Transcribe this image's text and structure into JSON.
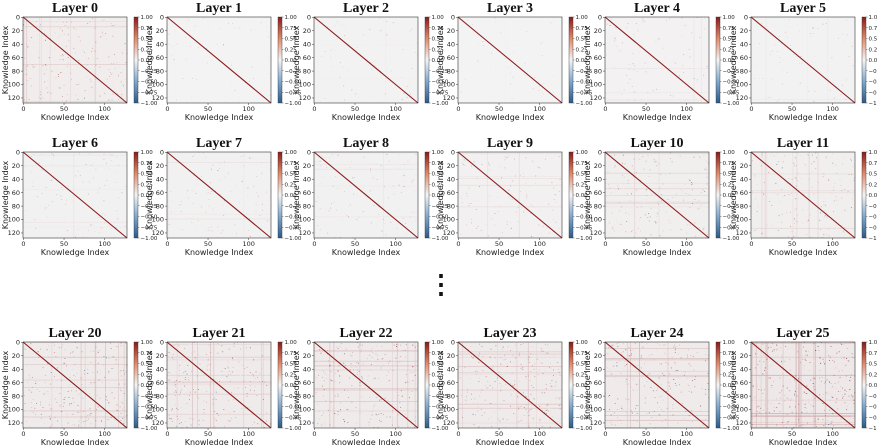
{
  "chart_data": {
    "type": "heatmap",
    "description_rows": 3,
    "xlabel": "Knowledge Index",
    "ylabel": "Knowledge Index",
    "matrix_size": 128,
    "x_ticks": [
      "0",
      "50",
      "100"
    ],
    "x_tick_values": [
      0,
      50,
      100
    ],
    "y_ticks": [
      "0",
      "20",
      "40",
      "60",
      "80",
      "100",
      "120"
    ],
    "y_tick_values": [
      0,
      20,
      40,
      60,
      80,
      100,
      120
    ],
    "colorbar_ticks": [
      "1.00",
      "0.75",
      "0.50",
      "0.25",
      "0.00",
      "−0.25",
      "−0.50",
      "−0.75",
      "−1.00"
    ],
    "colorbar_values": [
      1.0,
      0.75,
      0.5,
      0.25,
      0.0,
      -0.25,
      -0.5,
      -0.75,
      -1.0
    ],
    "vmin": -1.0,
    "vmax": 1.0,
    "colormap": {
      "low": "#2b5a8a",
      "mid": "#f4f4f4",
      "high": "#8b1a1a"
    },
    "ellipsis": "⋮",
    "panels": [
      {
        "title": "Layer 0",
        "noise": 0.2
      },
      {
        "title": "Layer 1",
        "noise": 0.03
      },
      {
        "title": "Layer 2",
        "noise": 0.05
      },
      {
        "title": "Layer 3",
        "noise": 0.03
      },
      {
        "title": "Layer 4",
        "noise": 0.08
      },
      {
        "title": "Layer 5",
        "noise": 0.06
      },
      {
        "title": "Layer 6",
        "noise": 0.1
      },
      {
        "title": "Layer 7",
        "noise": 0.1
      },
      {
        "title": "Layer 8",
        "noise": 0.1
      },
      {
        "title": "Layer 9",
        "noise": 0.12
      },
      {
        "title": "Layer 10",
        "noise": 0.18
      },
      {
        "title": "Layer 11",
        "noise": 0.18
      },
      {
        "title": "Layer 20",
        "noise": 0.28
      },
      {
        "title": "Layer 21",
        "noise": 0.28
      },
      {
        "title": "Layer 22",
        "noise": 0.28
      },
      {
        "title": "Layer 23",
        "noise": 0.26
      },
      {
        "title": "Layer 24",
        "noise": 0.28
      },
      {
        "title": "Layer 25",
        "noise": 0.38
      }
    ]
  }
}
